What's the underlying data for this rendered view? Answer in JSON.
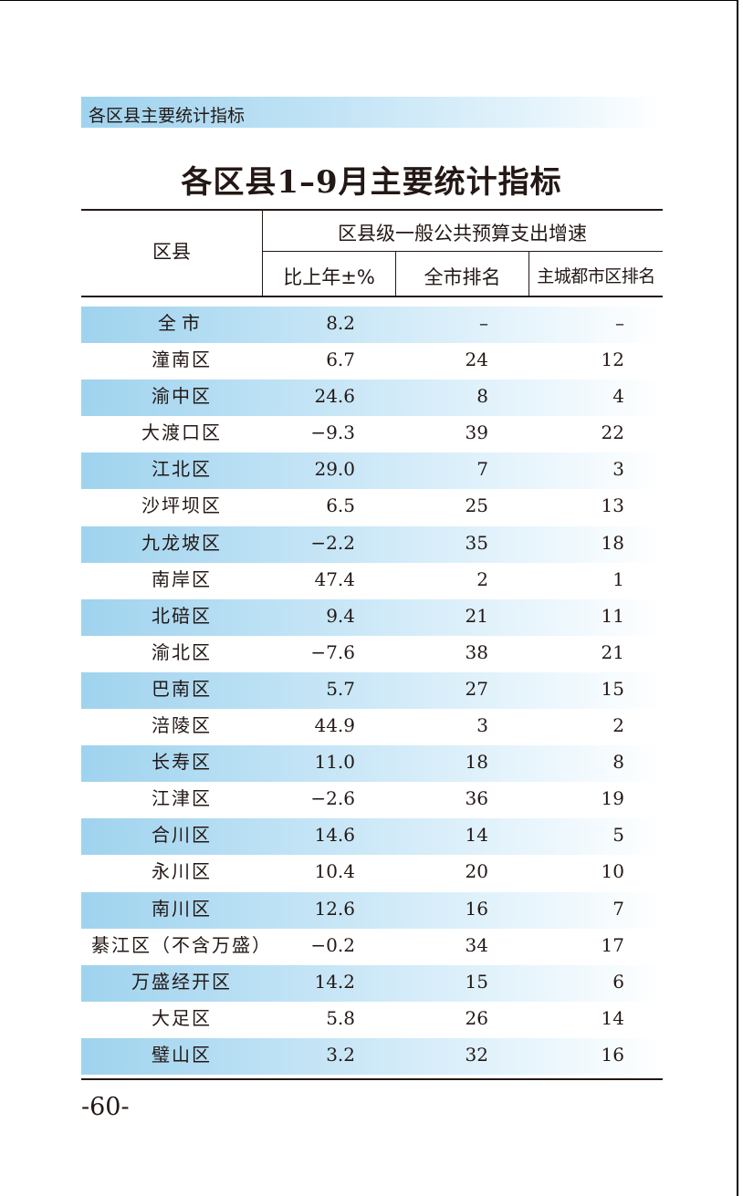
{
  "section_banner": "各区县主要统计指标",
  "title": "各区县1–9月主要统计指标",
  "header": {
    "county": "区县",
    "group": "区县级一般公共预算支出增速",
    "pct": "比上年±%",
    "rank": "全市排名",
    "main_rank": "主城都市区排名"
  },
  "rows": [
    {
      "name": "全市",
      "pct": "8.2",
      "rank": "–",
      "main_rank": "–"
    },
    {
      "name": "潼南区",
      "pct": "6.7",
      "rank": "24",
      "main_rank": "12"
    },
    {
      "name": "渝中区",
      "pct": "24.6",
      "rank": "8",
      "main_rank": "4"
    },
    {
      "name": "大渡口区",
      "pct": "−9.3",
      "rank": "39",
      "main_rank": "22"
    },
    {
      "name": "江北区",
      "pct": "29.0",
      "rank": "7",
      "main_rank": "3"
    },
    {
      "name": "沙坪坝区",
      "pct": "6.5",
      "rank": "25",
      "main_rank": "13"
    },
    {
      "name": "九龙坡区",
      "pct": "−2.2",
      "rank": "35",
      "main_rank": "18"
    },
    {
      "name": "南岸区",
      "pct": "47.4",
      "rank": "2",
      "main_rank": "1"
    },
    {
      "name": "北碚区",
      "pct": "9.4",
      "rank": "21",
      "main_rank": "11"
    },
    {
      "name": "渝北区",
      "pct": "−7.6",
      "rank": "38",
      "main_rank": "21"
    },
    {
      "name": "巴南区",
      "pct": "5.7",
      "rank": "27",
      "main_rank": "15"
    },
    {
      "name": "涪陵区",
      "pct": "44.9",
      "rank": "3",
      "main_rank": "2"
    },
    {
      "name": "长寿区",
      "pct": "11.0",
      "rank": "18",
      "main_rank": "8"
    },
    {
      "name": "江津区",
      "pct": "−2.6",
      "rank": "36",
      "main_rank": "19"
    },
    {
      "name": "合川区",
      "pct": "14.6",
      "rank": "14",
      "main_rank": "5"
    },
    {
      "name": "永川区",
      "pct": "10.4",
      "rank": "20",
      "main_rank": "10"
    },
    {
      "name": "南川区",
      "pct": "12.6",
      "rank": "16",
      "main_rank": "7"
    },
    {
      "name": "綦江区（不含万盛）",
      "pct": "−0.2",
      "rank": "34",
      "main_rank": "17"
    },
    {
      "name": "万盛经开区",
      "pct": "14.2",
      "rank": "15",
      "main_rank": "6"
    },
    {
      "name": "大足区",
      "pct": "5.8",
      "rank": "26",
      "main_rank": "14"
    },
    {
      "name": "璧山区",
      "pct": "3.2",
      "rank": "32",
      "main_rank": "16"
    }
  ],
  "page_number": "-60-"
}
